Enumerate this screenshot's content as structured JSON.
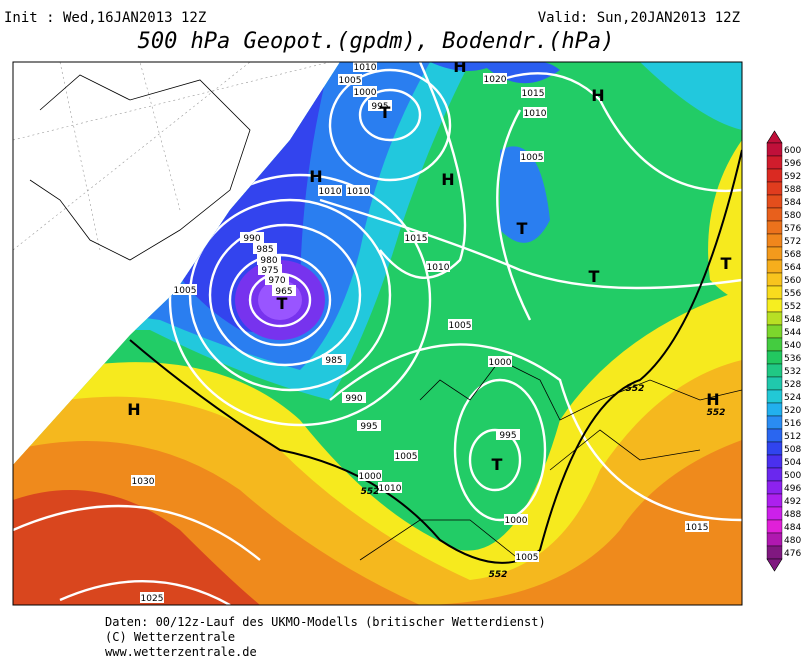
{
  "header": {
    "init": "Init : Wed,16JAN2013 12Z",
    "valid": "Valid: Sun,20JAN2013 12Z",
    "title": "500 hPa Geopot.(gpdm), Bodendr.(hPa)"
  },
  "colorbar": {
    "labels": [
      600,
      596,
      592,
      588,
      584,
      580,
      576,
      572,
      568,
      564,
      560,
      556,
      552,
      548,
      544,
      540,
      536,
      532,
      528,
      524,
      520,
      516,
      512,
      508,
      504,
      500,
      496,
      492,
      488,
      484,
      480,
      476
    ]
  },
  "map": {
    "pressure_labels": [
      "1010",
      "1005",
      "1000",
      "995",
      "1020",
      "1015",
      "1010",
      "1005",
      "1010",
      "1010",
      "1015",
      "1010",
      "990",
      "985",
      "980",
      "975",
      "970",
      "965",
      "1005",
      "985",
      "990",
      "1005",
      "1000",
      "995",
      "1000",
      "1005",
      "1010",
      "995",
      "1000",
      "1030",
      "1025",
      "1005",
      "1015"
    ],
    "contour_labels": [
      "552",
      "552",
      "552",
      "552"
    ],
    "systems": [
      "H",
      "H",
      "H",
      "H",
      "T",
      "T",
      "T",
      "T",
      "T",
      "H",
      "H",
      "T"
    ]
  },
  "footer": [
    "Daten: 00/12z-Lauf des UKMO-Modells (britischer Wetterdienst)",
    "(C) Wetterzentrale",
    "www.wetterzentrale.de"
  ]
}
